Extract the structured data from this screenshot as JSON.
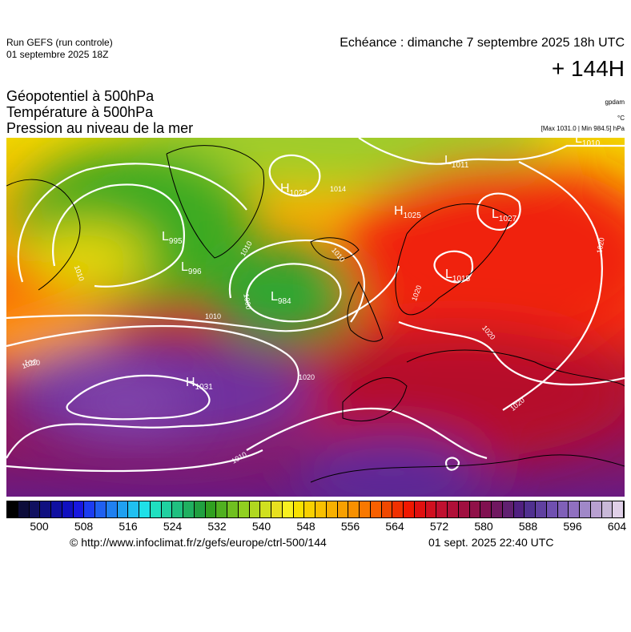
{
  "header": {
    "run": "Run GEFS (run controle)",
    "run_date": "01 septembre 2025 18Z",
    "echeance": "Echéance : dimanche 7 septembre 2025 18h UTC",
    "lead": "+ 144H"
  },
  "titles": [
    "Géopotentiel à 500hPa",
    "Température à 500hPa",
    "Pression au niveau de la mer"
  ],
  "units": {
    "geopotential": "gpdam",
    "temperature": "°C",
    "pressure": "[Max 1031.0 | Min 984.5] hPa"
  },
  "map": {
    "centers": [
      {
        "letter": "H",
        "value": "1025"
      },
      {
        "letter": "L",
        "value": "1011"
      },
      {
        "letter": "L",
        "value": "1010"
      },
      {
        "letter": "H",
        "value": "1025"
      },
      {
        "letter": "L",
        "value": "1027"
      },
      {
        "letter": "L",
        "value": "995"
      },
      {
        "letter": "L",
        "value": "996"
      },
      {
        "letter": "L",
        "value": "984"
      },
      {
        "letter": "L",
        "value": "1015"
      },
      {
        "letter": "H",
        "value": "1031"
      }
    ],
    "isobar_labels": [
      "1014",
      "1020",
      "1010",
      "1010",
      "1000",
      "1010",
      "1010",
      "1020",
      "1020",
      "1020",
      "1020",
      "1020",
      "1010",
      "1020"
    ]
  },
  "colorbar": {
    "labels": [
      500,
      508,
      516,
      524,
      532,
      540,
      548,
      556,
      564,
      572,
      580,
      588,
      596,
      604
    ]
  },
  "footer": {
    "source": "© http://www.infoclimat.fr/z/gefs/europe/ctrl-500/144",
    "generated": "01 sept. 2025 22:40 UTC"
  }
}
